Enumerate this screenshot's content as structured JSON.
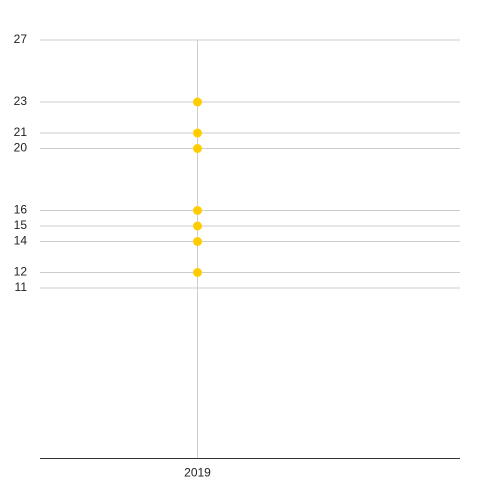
{
  "chart_data": {
    "type": "scatter",
    "x": [
      2019,
      2019,
      2019,
      2019,
      2019,
      2019,
      2019
    ],
    "values": [
      23,
      21,
      20,
      16,
      15,
      14,
      12
    ],
    "color": "#ffcc00",
    "xlim": [
      2017.5,
      2021.5
    ],
    "xticks": [
      2019
    ],
    "ylim": [
      0,
      27
    ],
    "yticks": [
      27,
      23,
      21,
      20,
      16,
      15,
      14,
      12,
      11
    ],
    "grid": true
  }
}
